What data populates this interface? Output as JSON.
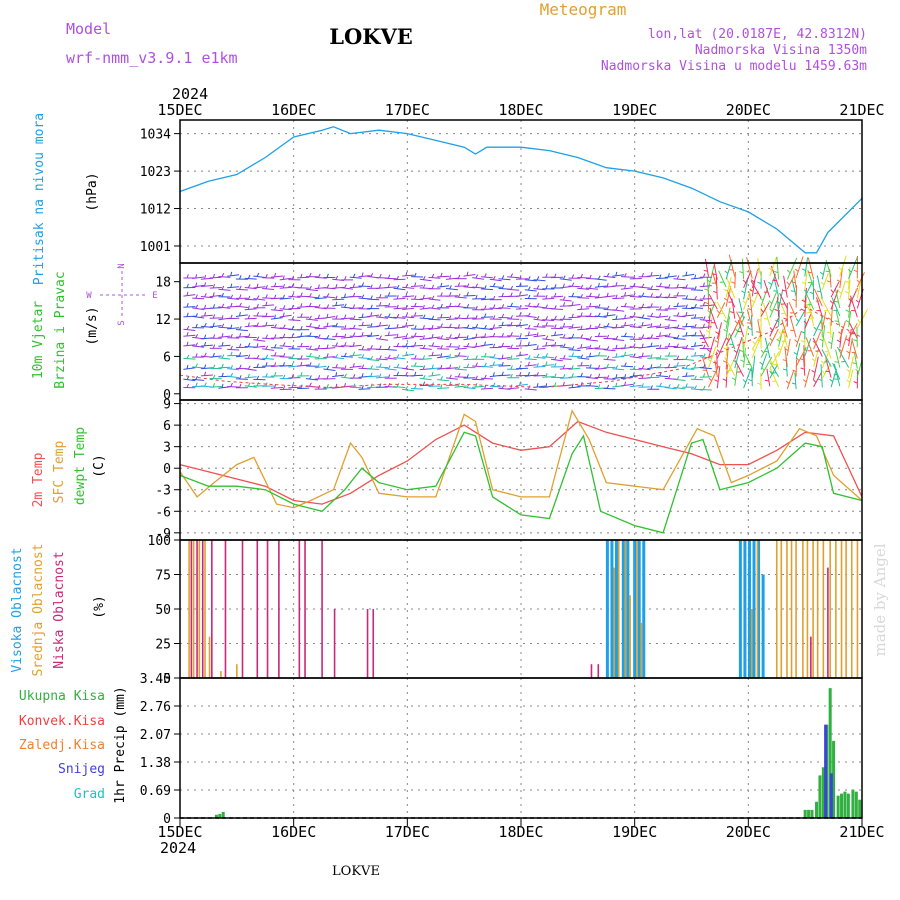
{
  "header": {
    "model_label": "Model",
    "model_name": "wrf-nmm_v3.9.1 e1km",
    "station": "LOKVE",
    "meteogram": "Meteogram",
    "lonlat": "lon,lat (20.0187E, 42.8312N)",
    "altitude": "Nadmorska Visina 1350m",
    "model_altitude": "Nadmorska Visina u modelu 1459.63m",
    "year": "2024",
    "footer_station": "LOKVE",
    "credit": "made by Angel"
  },
  "time_axis": {
    "labels": [
      "15DEC",
      "16DEC",
      "17DEC",
      "18DEC",
      "19DEC",
      "20DEC",
      "21DEC"
    ],
    "start_day": 15,
    "end_day": 21
  },
  "colors": {
    "pressure": "#1ea0e6",
    "temp2m": "#f05050",
    "sfc": "#e0a030",
    "dew": "#30c030",
    "high_cloud": "#1ea0e6",
    "mid_cloud": "#e0a030",
    "low_cloud": "#c8287a",
    "total_precip": "#30b040",
    "conv_precip": "#f04040",
    "frozen_precip": "#f08030",
    "snow": "#4040e0",
    "grad": "#20c0c0",
    "wind_label": "#30c030",
    "model_purple": "#b050e0"
  },
  "chart_data": [
    {
      "type": "line",
      "panel": "pressure",
      "ylabel": [
        "Pritisak na nivou mora",
        "(hPa)"
      ],
      "ylim": [
        996,
        1038
      ],
      "yticks": [
        "1034",
        "1023",
        "1012",
        "1001"
      ],
      "yticks_values": [
        1034,
        1023,
        1012,
        1001
      ],
      "series": [
        {
          "x": [
            15.0,
            15.25,
            15.5,
            15.75,
            16.0,
            16.25,
            16.35,
            16.5,
            16.75,
            17.0,
            17.25,
            17.5,
            17.6,
            17.7,
            18.0,
            18.25,
            18.5,
            18.75,
            19.0,
            19.25,
            19.5,
            19.75,
            20.0,
            20.25,
            20.5,
            20.6,
            20.7,
            21.0
          ],
          "y": [
            1017,
            1020,
            1022,
            1027,
            1033,
            1035,
            1036,
            1034,
            1035,
            1034,
            1032,
            1030,
            1028,
            1030,
            1030,
            1029,
            1027,
            1024,
            1023,
            1021,
            1018,
            1014,
            1011,
            1006,
            999,
            999,
            1005,
            1015
          ]
        }
      ]
    },
    {
      "type": "barbs",
      "panel": "wind",
      "ylabel": [
        "10m Vjetar",
        "Brzina i Pravac",
        "(m/s)"
      ],
      "direction_key": [
        "N",
        "W",
        "E",
        "S"
      ],
      "ylim": [
        -1,
        21
      ],
      "yticks": [
        "18",
        "12",
        "6",
        "0"
      ],
      "yticks_values": [
        18,
        12,
        6,
        0
      ]
    },
    {
      "type": "line",
      "panel": "temperature",
      "ylabel": [
        "2m Temp",
        "SFC Temp",
        "dewpt Temp",
        "(C)"
      ],
      "ylim": [
        -10,
        9.5
      ],
      "yticks": [
        "9",
        "6",
        "3",
        "0",
        "-3",
        "-6",
        "-9"
      ],
      "yticks_values": [
        9,
        6,
        3,
        0,
        -3,
        -6,
        -9
      ],
      "series": [
        {
          "name": "2m Temp",
          "x": [
            15.0,
            15.25,
            15.5,
            15.75,
            16.0,
            16.25,
            16.5,
            16.75,
            17.0,
            17.25,
            17.5,
            17.75,
            18.0,
            18.25,
            18.5,
            18.75,
            19.0,
            19.25,
            19.5,
            19.75,
            20.0,
            20.25,
            20.5,
            20.75,
            21.0
          ],
          "y": [
            0.5,
            -0.5,
            -1.5,
            -2.5,
            -4.5,
            -5.0,
            -3.5,
            -1.0,
            1.0,
            4.0,
            6.0,
            3.5,
            2.5,
            3.0,
            6.5,
            5.0,
            4.0,
            3.0,
            2.0,
            0.5,
            0.5,
            2.5,
            5.0,
            4.5,
            -4.0
          ]
        },
        {
          "name": "SFC Temp",
          "x": [
            15.0,
            15.15,
            15.3,
            15.5,
            15.65,
            15.85,
            16.0,
            16.15,
            16.35,
            16.5,
            16.6,
            16.75,
            17.0,
            17.25,
            17.5,
            17.6,
            17.75,
            18.0,
            18.25,
            18.45,
            18.6,
            18.75,
            19.0,
            19.25,
            19.55,
            19.7,
            19.85,
            20.0,
            20.25,
            20.45,
            20.6,
            20.75,
            21.0
          ],
          "y": [
            -0.5,
            -4.0,
            -2.0,
            0.5,
            1.5,
            -5.0,
            -5.5,
            -4.5,
            -3.0,
            3.5,
            1.5,
            -3.5,
            -4.0,
            -4.0,
            7.5,
            6.5,
            -3.0,
            -4.0,
            -4.0,
            8.0,
            4.0,
            -2.0,
            -2.5,
            -3.0,
            5.5,
            4.5,
            -2.0,
            -1.0,
            1.0,
            5.5,
            4.5,
            -1.0,
            -4.5
          ]
        },
        {
          "name": "dewpt Temp",
          "x": [
            15.0,
            15.25,
            15.5,
            15.75,
            16.0,
            16.25,
            16.45,
            16.6,
            16.75,
            17.0,
            17.25,
            17.5,
            17.6,
            17.75,
            18.0,
            18.25,
            18.45,
            18.55,
            18.7,
            19.0,
            19.25,
            19.5,
            19.6,
            19.75,
            20.0,
            20.25,
            20.5,
            20.65,
            20.75,
            21.0
          ],
          "y": [
            -1.0,
            -2.5,
            -2.5,
            -3.0,
            -5.0,
            -6.0,
            -3.0,
            0.0,
            -2.0,
            -3.0,
            -2.5,
            5.0,
            4.5,
            -4.0,
            -6.5,
            -7.0,
            2.0,
            4.5,
            -6.0,
            -8.0,
            -9.0,
            3.5,
            4.0,
            -3.0,
            -2.0,
            0.0,
            3.5,
            3.0,
            -3.5,
            -4.5
          ]
        }
      ]
    },
    {
      "type": "bar",
      "panel": "clouds",
      "ylabel": [
        "Visoka Oblacnost",
        "Srednja Oblacnost",
        "Niska Oblacnost",
        "(%)"
      ],
      "ylim": [
        0,
        100
      ],
      "yticks": [
        "100",
        "75",
        "50",
        "25",
        "0"
      ],
      "yticks_values": [
        100,
        75,
        50,
        25,
        0
      ],
      "series": [
        {
          "name": "Visoka Oblacnost",
          "x": [
            18.76,
            18.8,
            18.84,
            18.9,
            18.94,
            19.0,
            19.04,
            19.08,
            19.93,
            19.97,
            20.01,
            20.05,
            20.09,
            20.13
          ],
          "values": [
            100,
            100,
            100,
            100,
            100,
            100,
            100,
            100,
            100,
            100,
            100,
            100,
            100,
            75
          ]
        },
        {
          "name": "Srednja Oblacnost",
          "x": [
            15.08,
            15.12,
            15.17,
            15.22,
            15.26,
            15.36,
            15.5,
            18.82,
            18.86,
            18.92,
            18.96,
            19.02,
            19.06,
            20.03,
            20.08,
            20.25,
            20.29,
            20.34,
            20.38,
            20.42,
            20.48,
            20.52,
            20.57,
            20.61,
            20.66,
            20.72,
            20.77,
            20.82,
            20.86,
            20.91,
            20.96
          ],
          "values": [
            100,
            100,
            100,
            100,
            30,
            5,
            10,
            80,
            100,
            100,
            60,
            100,
            40,
            50,
            100,
            100,
            100,
            100,
            100,
            100,
            100,
            100,
            100,
            100,
            100,
            100,
            100,
            100,
            100,
            100,
            100
          ]
        },
        {
          "name": "Niska Oblacnost",
          "x": [
            15.1,
            15.15,
            15.2,
            15.28,
            15.4,
            15.55,
            15.68,
            15.77,
            15.87,
            16.05,
            16.1,
            16.25,
            16.36,
            16.65,
            16.7,
            18.62,
            18.68,
            20.55,
            20.7
          ],
          "values": [
            100,
            100,
            100,
            100,
            100,
            100,
            100,
            100,
            100,
            100,
            100,
            100,
            50,
            50,
            50,
            10,
            10,
            30,
            80
          ]
        }
      ]
    },
    {
      "type": "bar",
      "panel": "precip",
      "ylabel": [
        "1hr Precip (mm)"
      ],
      "legend": [
        "Ukupna Kisa",
        "Konvek.Kisa",
        "Zaledj.Kisa",
        "Snijeg",
        "Grad"
      ],
      "ylim": [
        0,
        3.45
      ],
      "yticks": [
        "3.45",
        "2.76",
        "2.07",
        "1.38",
        "0.69",
        "0"
      ],
      "yticks_values": [
        3.45,
        2.76,
        2.07,
        1.38,
        0.69,
        0
      ],
      "series": [
        {
          "name": "Ukupna Kisa",
          "x": [
            15.32,
            15.35,
            15.38,
            20.5,
            20.53,
            20.56,
            20.6,
            20.63,
            20.66,
            20.69,
            20.72,
            20.75,
            20.79,
            20.82,
            20.85,
            20.88,
            20.92,
            20.95,
            20.98
          ],
          "values": [
            0.08,
            0.1,
            0.15,
            0.2,
            0.2,
            0.2,
            0.4,
            1.05,
            1.25,
            2.3,
            3.2,
            1.9,
            0.55,
            0.6,
            0.65,
            0.6,
            0.7,
            0.65,
            0.45
          ]
        },
        {
          "name": "Snijeg",
          "x": [
            20.68,
            20.73
          ],
          "values": [
            2.3,
            1.1
          ]
        }
      ]
    }
  ]
}
